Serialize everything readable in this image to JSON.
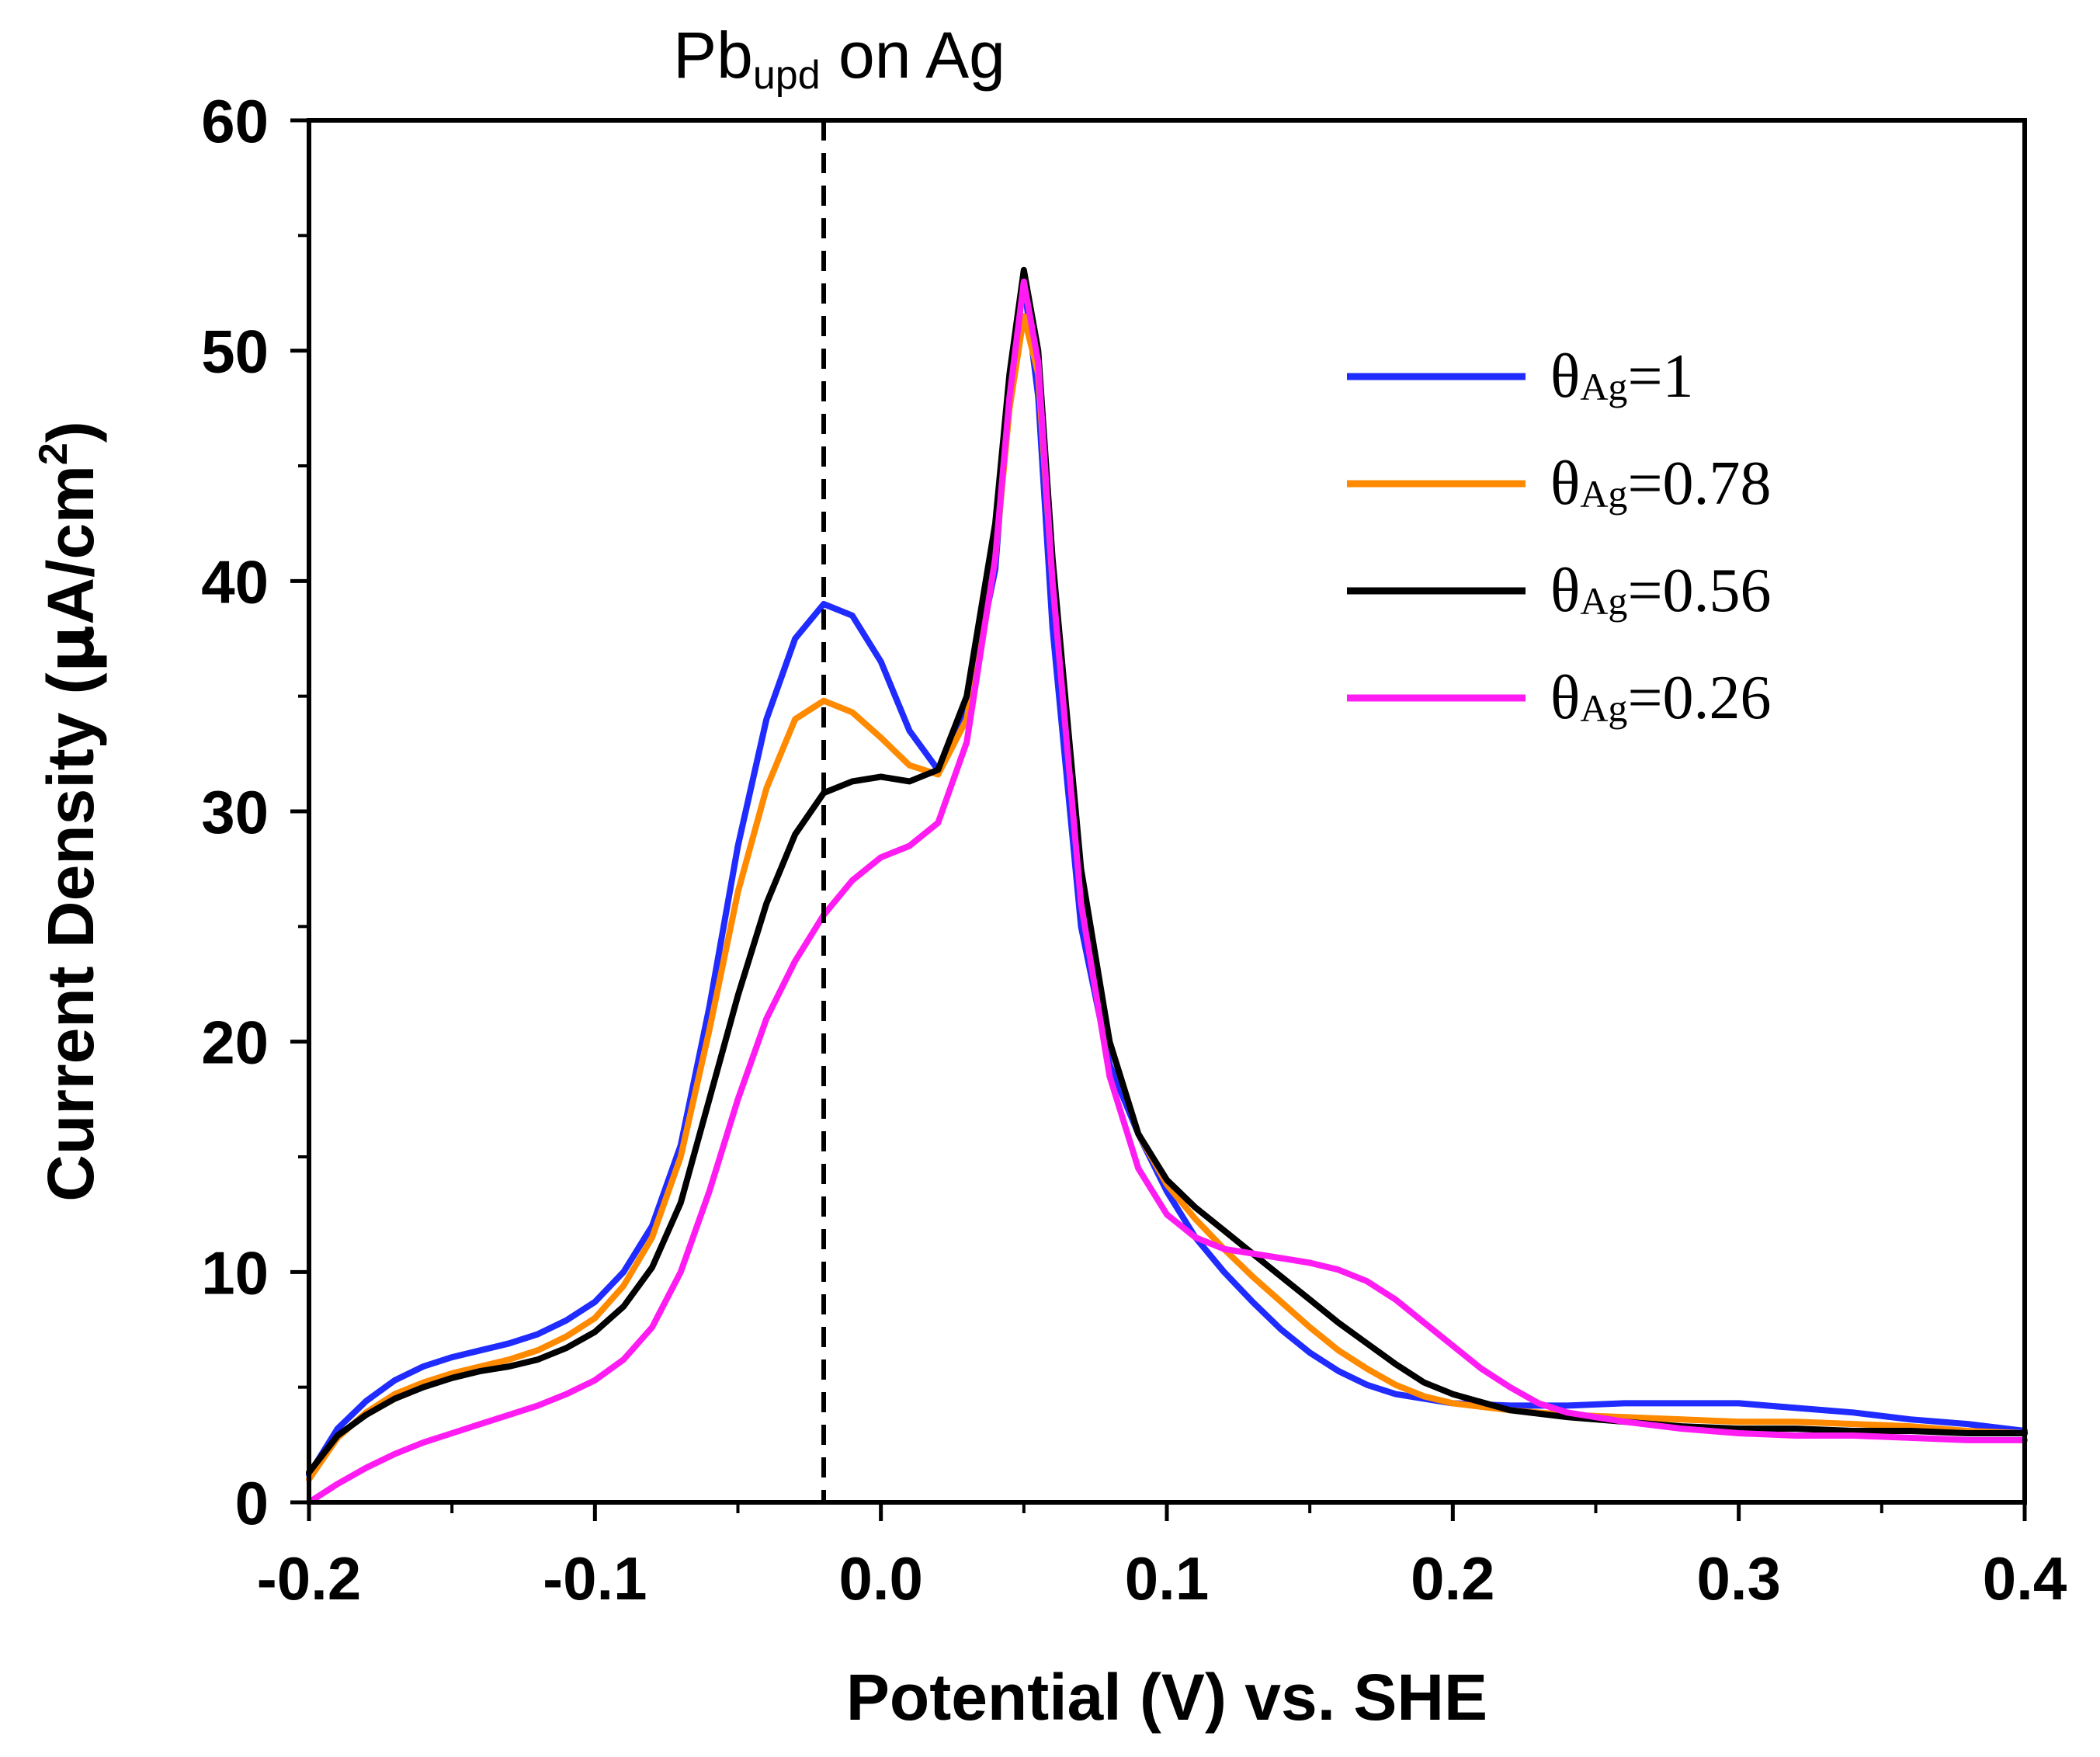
{
  "chart_data": {
    "type": "line",
    "title": "",
    "xlabel": "Potential (V) vs. SHE",
    "ylabel_parts": {
      "before": "Current Density (",
      "mu": "μ",
      "after": "A/cm",
      "sup": "2",
      "close": ")"
    },
    "xlim": [
      -0.2,
      0.4
    ],
    "ylim": [
      0,
      60
    ],
    "x_ticks": [
      -0.2,
      -0.1,
      0.0,
      0.1,
      0.2,
      0.3,
      0.4
    ],
    "x_tick_labels": [
      "-0.2",
      "-0.1",
      "0.0",
      "0.1",
      "0.2",
      "0.3",
      "0.4"
    ],
    "y_ticks": [
      0,
      10,
      20,
      30,
      40,
      50,
      60
    ],
    "y_tick_labels": [
      "0",
      "10",
      "20",
      "30",
      "40",
      "50",
      "60"
    ],
    "grid": false,
    "legend_position": "top-right",
    "annotation": {
      "x": -0.02,
      "style": "dashed-vertical-line",
      "label_main": "Pb",
      "label_sub": "upd",
      "label_rest": " on Ag"
    },
    "series": [
      {
        "name": "θAg=1",
        "label_theta": "θ",
        "label_sub": "Ag",
        "label_rest": "=1",
        "color": "#1f2bff",
        "points": [
          [
            -0.2,
            1.2
          ],
          [
            -0.19,
            3.2
          ],
          [
            -0.18,
            4.4
          ],
          [
            -0.17,
            5.3
          ],
          [
            -0.16,
            5.9
          ],
          [
            -0.15,
            6.3
          ],
          [
            -0.14,
            6.6
          ],
          [
            -0.13,
            6.9
          ],
          [
            -0.12,
            7.3
          ],
          [
            -0.11,
            7.9
          ],
          [
            -0.1,
            8.7
          ],
          [
            -0.09,
            10.0
          ],
          [
            -0.08,
            12.0
          ],
          [
            -0.07,
            15.5
          ],
          [
            -0.06,
            21.5
          ],
          [
            -0.05,
            28.5
          ],
          [
            -0.04,
            34.0
          ],
          [
            -0.03,
            37.5
          ],
          [
            -0.02,
            39.0
          ],
          [
            -0.01,
            38.5
          ],
          [
            0.0,
            36.5
          ],
          [
            0.01,
            33.5
          ],
          [
            0.02,
            31.8
          ],
          [
            0.03,
            34.5
          ],
          [
            0.04,
            40.5
          ],
          [
            0.045,
            48.5
          ],
          [
            0.05,
            53.0
          ],
          [
            0.055,
            48.0
          ],
          [
            0.06,
            38.0
          ],
          [
            0.07,
            25.0
          ],
          [
            0.08,
            19.0
          ],
          [
            0.09,
            16.0
          ],
          [
            0.1,
            13.5
          ],
          [
            0.11,
            11.5
          ],
          [
            0.12,
            10.0
          ],
          [
            0.13,
            8.7
          ],
          [
            0.14,
            7.5
          ],
          [
            0.15,
            6.5
          ],
          [
            0.16,
            5.7
          ],
          [
            0.17,
            5.1
          ],
          [
            0.18,
            4.7
          ],
          [
            0.19,
            4.5
          ],
          [
            0.2,
            4.3
          ],
          [
            0.22,
            4.2
          ],
          [
            0.24,
            4.2
          ],
          [
            0.26,
            4.3
          ],
          [
            0.28,
            4.3
          ],
          [
            0.3,
            4.3
          ],
          [
            0.32,
            4.1
          ],
          [
            0.34,
            3.9
          ],
          [
            0.36,
            3.6
          ],
          [
            0.38,
            3.4
          ],
          [
            0.4,
            3.1
          ]
        ]
      },
      {
        "name": "θAg=0.78",
        "label_theta": "θ",
        "label_sub": "Ag",
        "label_rest": "=0.78",
        "color": "#ff8a00",
        "points": [
          [
            -0.2,
            1.0
          ],
          [
            -0.19,
            2.8
          ],
          [
            -0.18,
            3.9
          ],
          [
            -0.17,
            4.7
          ],
          [
            -0.16,
            5.2
          ],
          [
            -0.15,
            5.6
          ],
          [
            -0.14,
            5.9
          ],
          [
            -0.13,
            6.2
          ],
          [
            -0.12,
            6.6
          ],
          [
            -0.11,
            7.2
          ],
          [
            -0.1,
            8.0
          ],
          [
            -0.09,
            9.4
          ],
          [
            -0.08,
            11.5
          ],
          [
            -0.07,
            15.0
          ],
          [
            -0.06,
            20.5
          ],
          [
            -0.05,
            26.5
          ],
          [
            -0.04,
            31.0
          ],
          [
            -0.03,
            34.0
          ],
          [
            -0.02,
            34.8
          ],
          [
            -0.01,
            34.3
          ],
          [
            0.0,
            33.2
          ],
          [
            0.01,
            32.0
          ],
          [
            0.02,
            31.6
          ],
          [
            0.03,
            34.0
          ],
          [
            0.04,
            41.0
          ],
          [
            0.045,
            47.5
          ],
          [
            0.05,
            51.5
          ],
          [
            0.055,
            49.0
          ],
          [
            0.06,
            40.0
          ],
          [
            0.07,
            27.0
          ],
          [
            0.08,
            20.0
          ],
          [
            0.09,
            16.0
          ],
          [
            0.1,
            13.8
          ],
          [
            0.11,
            12.3
          ],
          [
            0.12,
            11.0
          ],
          [
            0.13,
            9.8
          ],
          [
            0.14,
            8.7
          ],
          [
            0.15,
            7.6
          ],
          [
            0.16,
            6.6
          ],
          [
            0.17,
            5.8
          ],
          [
            0.18,
            5.1
          ],
          [
            0.19,
            4.6
          ],
          [
            0.2,
            4.3
          ],
          [
            0.22,
            4.0
          ],
          [
            0.24,
            3.8
          ],
          [
            0.26,
            3.7
          ],
          [
            0.28,
            3.6
          ],
          [
            0.3,
            3.5
          ],
          [
            0.32,
            3.5
          ],
          [
            0.34,
            3.4
          ],
          [
            0.36,
            3.3
          ],
          [
            0.38,
            3.1
          ],
          [
            0.4,
            3.0
          ]
        ]
      },
      {
        "name": "θAg=0.56",
        "label_theta": "θ",
        "label_sub": "Ag",
        "label_rest": "=0.56",
        "color": "#000000",
        "points": [
          [
            -0.2,
            1.3
          ],
          [
            -0.19,
            2.9
          ],
          [
            -0.18,
            3.8
          ],
          [
            -0.17,
            4.5
          ],
          [
            -0.16,
            5.0
          ],
          [
            -0.15,
            5.4
          ],
          [
            -0.14,
            5.7
          ],
          [
            -0.13,
            5.9
          ],
          [
            -0.12,
            6.2
          ],
          [
            -0.11,
            6.7
          ],
          [
            -0.1,
            7.4
          ],
          [
            -0.09,
            8.5
          ],
          [
            -0.08,
            10.2
          ],
          [
            -0.07,
            13.0
          ],
          [
            -0.06,
            17.5
          ],
          [
            -0.05,
            22.0
          ],
          [
            -0.04,
            26.0
          ],
          [
            -0.03,
            29.0
          ],
          [
            -0.02,
            30.8
          ],
          [
            -0.01,
            31.3
          ],
          [
            0.0,
            31.5
          ],
          [
            0.01,
            31.3
          ],
          [
            0.02,
            31.8
          ],
          [
            0.03,
            35.0
          ],
          [
            0.04,
            42.5
          ],
          [
            0.045,
            49.0
          ],
          [
            0.05,
            53.5
          ],
          [
            0.055,
            50.0
          ],
          [
            0.06,
            41.0
          ],
          [
            0.07,
            27.5
          ],
          [
            0.08,
            20.0
          ],
          [
            0.09,
            16.0
          ],
          [
            0.1,
            14.0
          ],
          [
            0.11,
            12.8
          ],
          [
            0.12,
            11.8
          ],
          [
            0.13,
            10.8
          ],
          [
            0.14,
            9.8
          ],
          [
            0.15,
            8.8
          ],
          [
            0.16,
            7.8
          ],
          [
            0.17,
            6.9
          ],
          [
            0.18,
            6.0
          ],
          [
            0.19,
            5.2
          ],
          [
            0.2,
            4.7
          ],
          [
            0.22,
            4.0
          ],
          [
            0.24,
            3.7
          ],
          [
            0.26,
            3.5
          ],
          [
            0.28,
            3.3
          ],
          [
            0.3,
            3.2
          ],
          [
            0.32,
            3.2
          ],
          [
            0.34,
            3.1
          ],
          [
            0.36,
            3.1
          ],
          [
            0.38,
            3.0
          ],
          [
            0.4,
            3.0
          ]
        ]
      },
      {
        "name": "θAg=0.26",
        "label_theta": "θ",
        "label_sub": "Ag",
        "label_rest": "=0.26",
        "color": "#ff1cf2",
        "points": [
          [
            -0.2,
            0.0
          ],
          [
            -0.19,
            0.8
          ],
          [
            -0.18,
            1.5
          ],
          [
            -0.17,
            2.1
          ],
          [
            -0.16,
            2.6
          ],
          [
            -0.15,
            3.0
          ],
          [
            -0.14,
            3.4
          ],
          [
            -0.13,
            3.8
          ],
          [
            -0.12,
            4.2
          ],
          [
            -0.11,
            4.7
          ],
          [
            -0.1,
            5.3
          ],
          [
            -0.09,
            6.2
          ],
          [
            -0.08,
            7.6
          ],
          [
            -0.07,
            10.0
          ],
          [
            -0.06,
            13.5
          ],
          [
            -0.05,
            17.5
          ],
          [
            -0.04,
            21.0
          ],
          [
            -0.03,
            23.5
          ],
          [
            -0.02,
            25.5
          ],
          [
            -0.01,
            27.0
          ],
          [
            0.0,
            28.0
          ],
          [
            0.01,
            28.5
          ],
          [
            0.02,
            29.5
          ],
          [
            0.03,
            33.0
          ],
          [
            0.04,
            41.0
          ],
          [
            0.045,
            48.0
          ],
          [
            0.05,
            53.0
          ],
          [
            0.055,
            49.5
          ],
          [
            0.06,
            40.0
          ],
          [
            0.07,
            26.0
          ],
          [
            0.08,
            18.5
          ],
          [
            0.09,
            14.5
          ],
          [
            0.1,
            12.5
          ],
          [
            0.11,
            11.5
          ],
          [
            0.12,
            11.0
          ],
          [
            0.13,
            10.8
          ],
          [
            0.14,
            10.6
          ],
          [
            0.15,
            10.4
          ],
          [
            0.16,
            10.1
          ],
          [
            0.17,
            9.6
          ],
          [
            0.18,
            8.8
          ],
          [
            0.19,
            7.8
          ],
          [
            0.2,
            6.8
          ],
          [
            0.21,
            5.8
          ],
          [
            0.22,
            5.0
          ],
          [
            0.23,
            4.3
          ],
          [
            0.24,
            3.9
          ],
          [
            0.26,
            3.5
          ],
          [
            0.28,
            3.2
          ],
          [
            0.3,
            3.0
          ],
          [
            0.32,
            2.9
          ],
          [
            0.34,
            2.9
          ],
          [
            0.36,
            2.8
          ],
          [
            0.38,
            2.7
          ],
          [
            0.4,
            2.7
          ]
        ]
      }
    ]
  }
}
